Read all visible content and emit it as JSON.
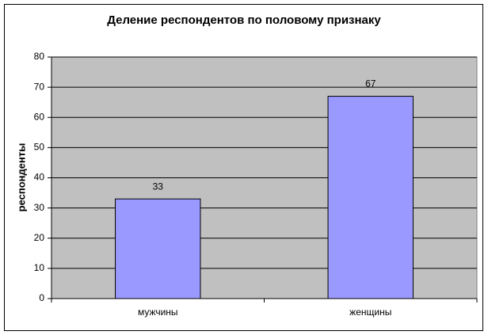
{
  "chart_data": {
    "type": "bar",
    "title": "Деление респондентов по половому признаку",
    "y_label": "респонденты",
    "categories": [
      "мужчины",
      "женщины"
    ],
    "values": [
      33,
      67
    ],
    "color": "#9999ff",
    "ylim": [
      0,
      80
    ],
    "yticks": [
      0,
      10,
      20,
      30,
      40,
      50,
      60,
      70,
      80
    ],
    "grid": true,
    "data_labels": true
  }
}
